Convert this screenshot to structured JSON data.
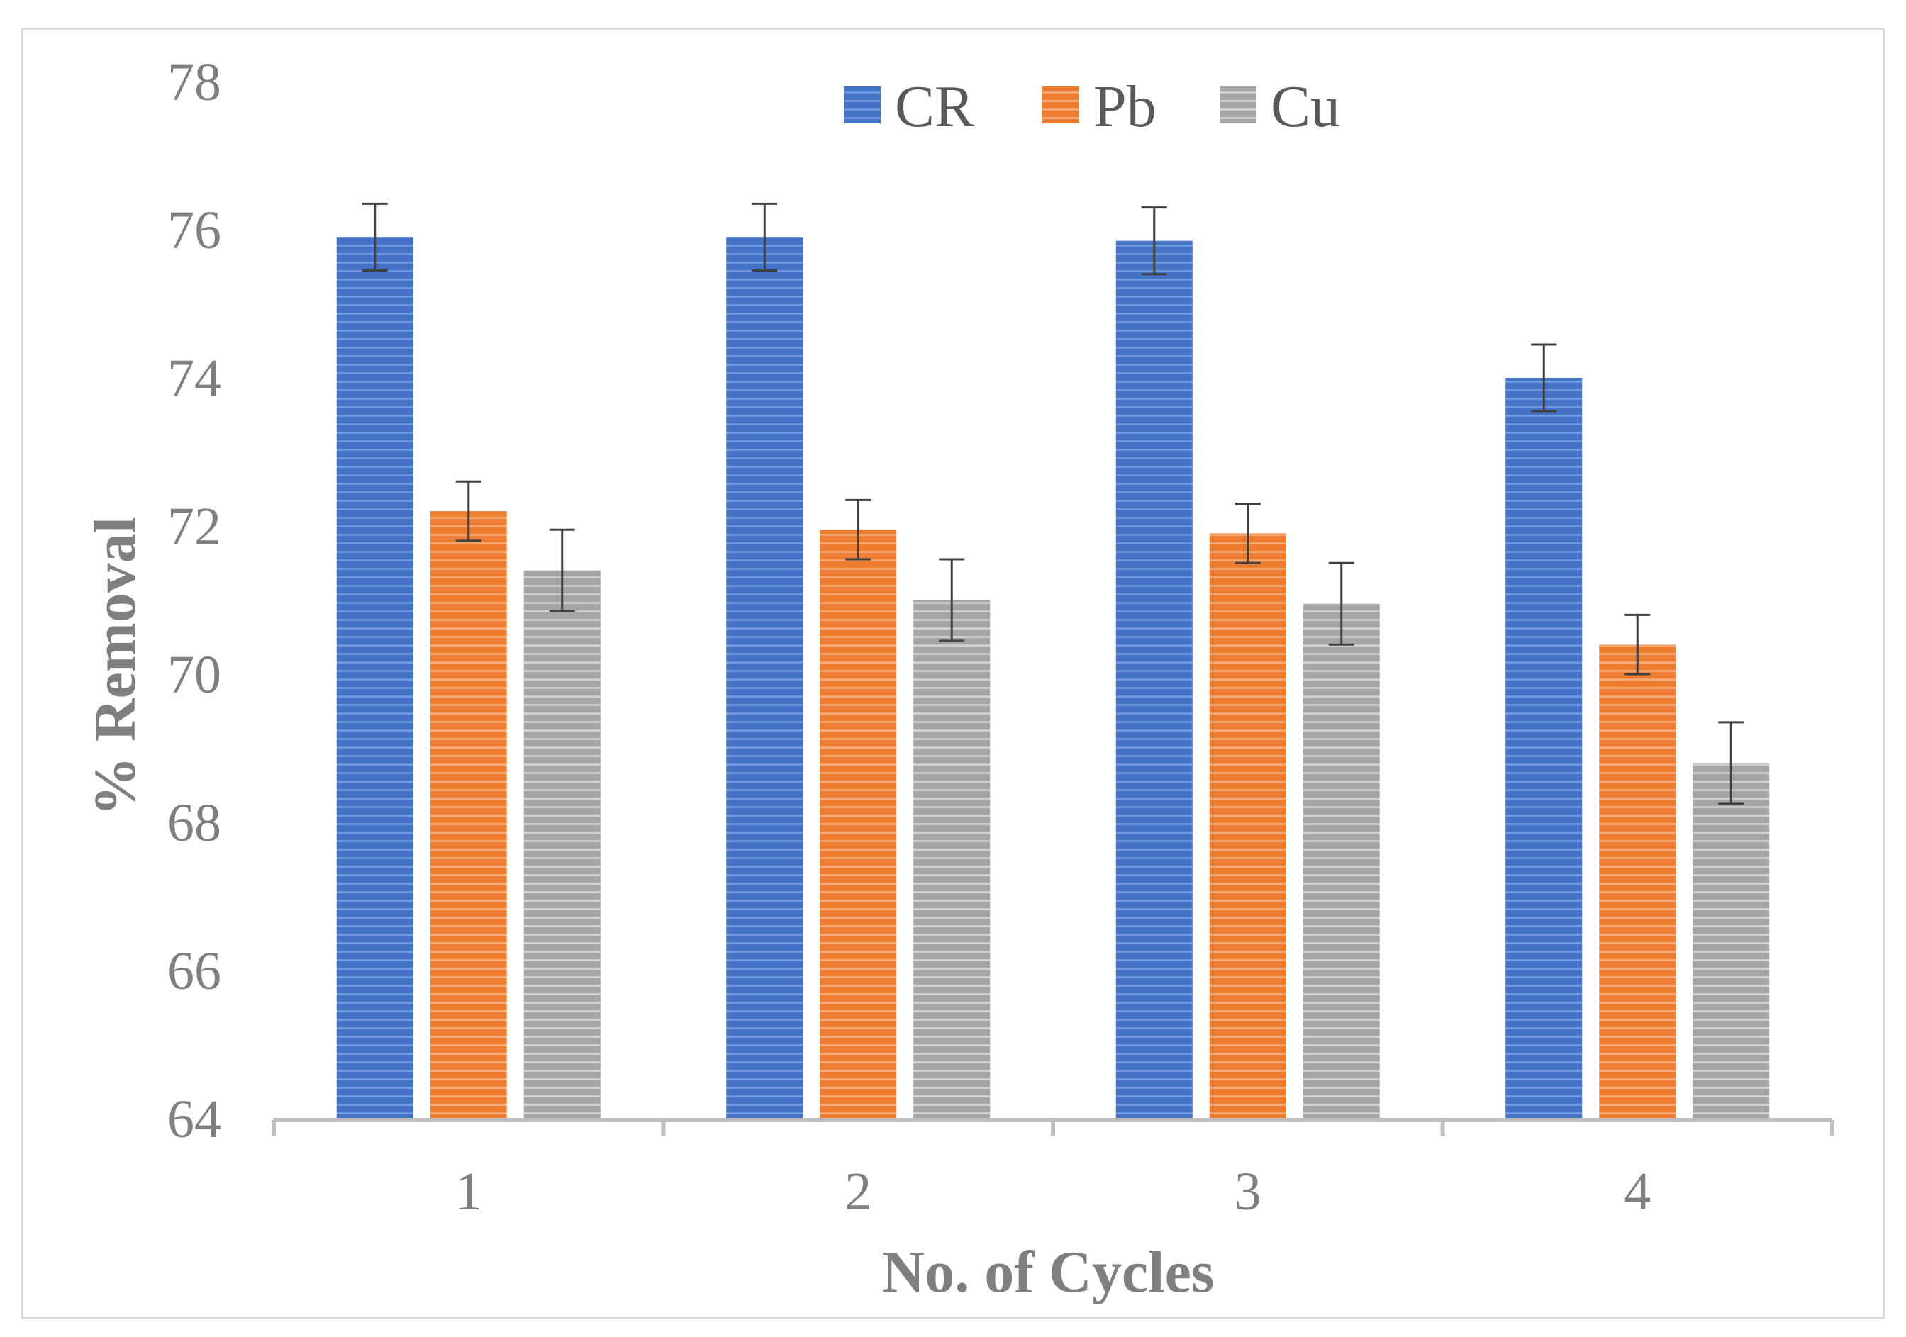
{
  "chart_data": {
    "type": "bar",
    "title": "",
    "xlabel": "No. of Cycles",
    "ylabel": "% Removal",
    "categories": [
      "1",
      "2",
      "3",
      "4"
    ],
    "ylim": [
      64,
      78
    ],
    "yticks": [
      64,
      66,
      68,
      70,
      72,
      74,
      76,
      78
    ],
    "ytick_labels": [
      "64",
      "66",
      "68",
      "70",
      "72",
      "74",
      "76",
      "78"
    ],
    "grid": false,
    "legend_position": "top-center",
    "series": [
      {
        "name": "CR",
        "color": "#4472c4",
        "values": [
          75.9,
          75.9,
          75.85,
          74.0
        ],
        "errors": [
          0.45,
          0.45,
          0.45,
          0.45
        ]
      },
      {
        "name": "Pb",
        "color": "#ed7d31",
        "values": [
          72.2,
          71.95,
          71.9,
          70.4
        ],
        "errors": [
          0.4,
          0.4,
          0.4,
          0.4
        ]
      },
      {
        "name": "Cu",
        "color": "#a5a5a5",
        "values": [
          71.4,
          71.0,
          70.95,
          68.8
        ],
        "errors": [
          0.55,
          0.55,
          0.55,
          0.55
        ]
      }
    ]
  }
}
